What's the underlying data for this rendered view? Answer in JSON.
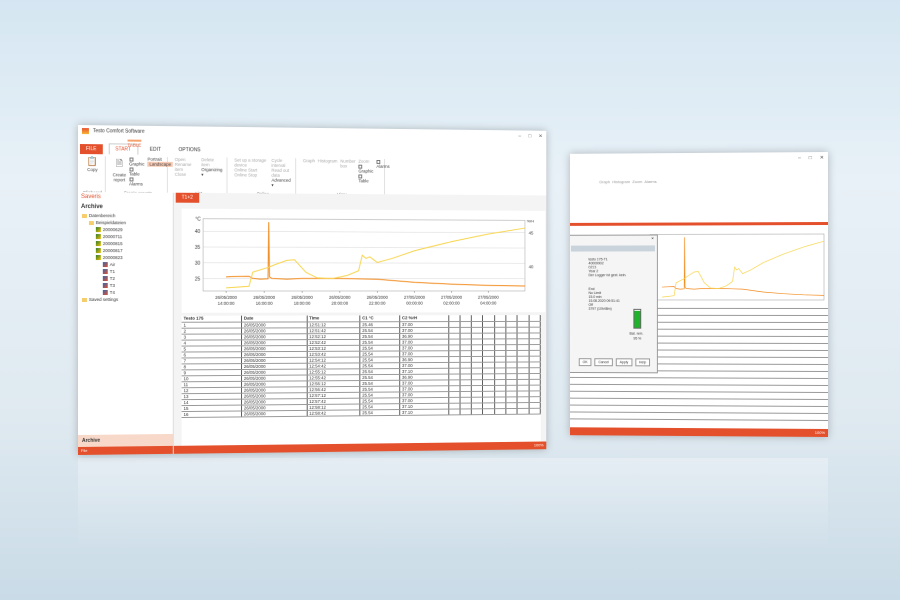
{
  "window": {
    "title": "Testo Comfort Software",
    "minimize": "–",
    "maximize": "□",
    "close": "✕"
  },
  "ribbon": {
    "context_tab": "TABLE",
    "tabs": [
      "FILE",
      "START",
      "EDIT",
      "OPTIONS"
    ],
    "clipboard": {
      "copy": "Copy",
      "group": "Clipboard"
    },
    "reports": {
      "create_report": "Create report",
      "graphic": "Graphic",
      "table": "Table",
      "alarms": "Alarms",
      "portrait": "Portrait",
      "landscape": "Landscape",
      "group": "Create reports"
    },
    "list": {
      "open": "Open",
      "rename_item": "Rename item",
      "close": "Close",
      "delete_item": "Delete item",
      "organizing": "Organizing ▾",
      "group": "List"
    },
    "online": {
      "setup": "Set up a storage device",
      "online_start": "Online Start",
      "online_stop": "Online Stop",
      "cycle": "Cycle interval",
      "read_out": "Read out data",
      "advanced": "Advanced ▾",
      "group": "Online"
    },
    "view": {
      "graph": "Graph",
      "histogram": "Histogram",
      "number_box": "Number box",
      "zoom": "Zoom",
      "graphic": "Graphic",
      "table": "Table",
      "alarms": "Alarms",
      "group": "View"
    }
  },
  "sidebar": {
    "header": "Saveris",
    "title": "Archive",
    "tree": [
      {
        "label": "Datenbereich",
        "level": 0,
        "icon": "folder"
      },
      {
        "label": "Beispieldateien",
        "level": 1,
        "icon": "folder"
      },
      {
        "label": "20000629",
        "level": 2,
        "icon": "node"
      },
      {
        "label": "20000711",
        "level": 2,
        "icon": "node"
      },
      {
        "label": "20000815",
        "level": 2,
        "icon": "node"
      },
      {
        "label": "20000817",
        "level": 2,
        "icon": "node"
      },
      {
        "label": "20000823",
        "level": 2,
        "icon": "node"
      },
      {
        "label": "Air",
        "level": 3,
        "icon": "device"
      },
      {
        "label": "T1",
        "level": 3,
        "icon": "device"
      },
      {
        "label": "T2",
        "level": 3,
        "icon": "device"
      },
      {
        "label": "T3",
        "level": 3,
        "icon": "device"
      },
      {
        "label": "T4",
        "level": 3,
        "icon": "device"
      },
      {
        "label": "Saved settings",
        "level": 0,
        "icon": "folder"
      }
    ],
    "nav_button": "Archive",
    "status": "File"
  },
  "document_tab": "T1+2",
  "chart_data": {
    "type": "line",
    "ylabel": "°C",
    "y2label": "%rH",
    "ylim": [
      21,
      44
    ],
    "yticks": [
      "25",
      "30",
      "35",
      "40"
    ],
    "y2ticks": [
      "40",
      "45"
    ],
    "xticks": [
      "26/05/2000\n14:00:00",
      "26/05/2000\n16:00:00",
      "26/05/2000\n18:00:00",
      "26/05/2000\n20:00:00",
      "26/05/2000\n22:00:00",
      "27/05/2000\n00:00:00",
      "27/05/2000\n02:00:00",
      "27/05/2000\n04:00:00"
    ],
    "series": [
      {
        "color": "#f28a1c",
        "x": [
          0,
          0.2,
          0.6,
          0.7,
          0.9,
          1.1,
          1.12,
          1.14,
          1.2,
          1.6,
          2,
          2.5,
          3,
          3.5,
          4,
          5,
          6,
          7,
          8
        ],
        "values": [
          25.5,
          25.6,
          25.7,
          25,
          24.8,
          24.9,
          43,
          25.5,
          25,
          24.8,
          25,
          25,
          25,
          24.9,
          24.8,
          23.8,
          23.2,
          22.8,
          22.6
        ]
      },
      {
        "color": "#f7d44a",
        "x": [
          0,
          0.6,
          0.7,
          1.1,
          1.3,
          1.6,
          1.8,
          2.1,
          2.4,
          2.8,
          3.2,
          3.5,
          3.6,
          3.7,
          3.8,
          4,
          4.4,
          5,
          6,
          7,
          8
        ],
        "values": [
          22,
          22.5,
          27,
          28.5,
          29.5,
          30.8,
          31,
          27,
          25.2,
          25,
          26,
          27.5,
          32.5,
          31.5,
          32,
          30.2,
          31.5,
          34,
          37,
          39.5,
          41.5
        ]
      }
    ]
  },
  "table": {
    "headers": [
      "Testo 175",
      "Date",
      "Time",
      "C1 °C",
      "C2 %rH"
    ],
    "rows": [
      [
        "1",
        "26/05/2000",
        "12:51:12",
        "25.46",
        "37.00"
      ],
      [
        "2",
        "26/05/2000",
        "12:51:42",
        "25.54",
        "37.00"
      ],
      [
        "3",
        "26/05/2000",
        "12:52:12",
        "25.54",
        "36.90"
      ],
      [
        "4",
        "26/05/2000",
        "12:52:42",
        "25.54",
        "37.00"
      ],
      [
        "5",
        "26/05/2000",
        "12:53:12",
        "25.54",
        "37.00"
      ],
      [
        "6",
        "26/05/2000",
        "12:53:42",
        "25.54",
        "37.00"
      ],
      [
        "7",
        "26/05/2000",
        "12:54:12",
        "25.54",
        "36.90"
      ],
      [
        "8",
        "26/05/2000",
        "12:54:42",
        "25.54",
        "37.00"
      ],
      [
        "9",
        "26/05/2000",
        "12:55:12",
        "25.54",
        "37.10"
      ],
      [
        "10",
        "26/05/2000",
        "12:55:42",
        "25.54",
        "36.90"
      ],
      [
        "11",
        "26/05/2000",
        "12:56:12",
        "25.54",
        "37.00"
      ],
      [
        "12",
        "26/05/2000",
        "12:56:42",
        "25.54",
        "37.00"
      ],
      [
        "13",
        "26/05/2000",
        "12:57:12",
        "25.54",
        "37.00"
      ],
      [
        "14",
        "26/05/2000",
        "12:57:42",
        "25.54",
        "37.00"
      ],
      [
        "15",
        "26/05/2000",
        "12:58:12",
        "25.54",
        "37.10"
      ],
      [
        "16",
        "26/05/2000",
        "12:58:42",
        "25.54",
        "37.10"
      ]
    ]
  },
  "zoom": "100%",
  "dialog": {
    "lines": [
      "testo 175-T1",
      "40009902",
      "0213",
      "Year 2",
      "Der Logger ist gest. kein."
    ],
    "lines2": [
      "End",
      "No Limit",
      "15.0 min",
      "15.08.2020 09:51:41",
      "Off",
      "3797 (10h48m)"
    ],
    "battery_label": "Bat. rem.",
    "battery_value": "95 %",
    "battery_level": 0.95,
    "ok": "OK",
    "cancel": "Cancel",
    "apply": "Apply",
    "help": "Help"
  }
}
